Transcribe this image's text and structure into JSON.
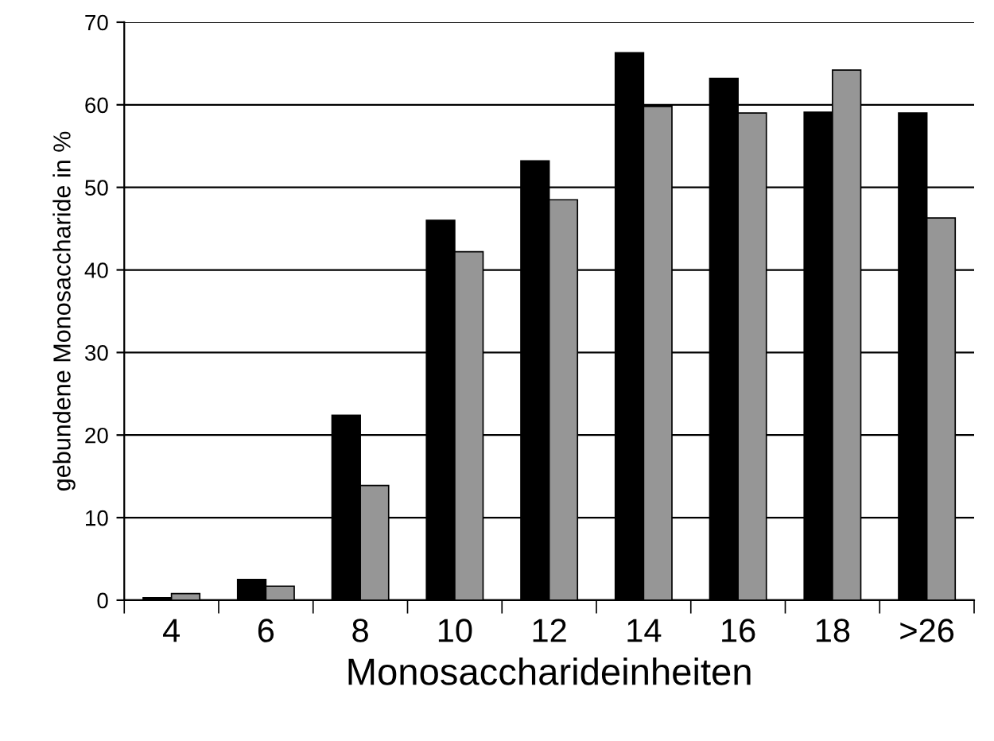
{
  "chart_data": {
    "type": "bar",
    "xlabel": "Monosaccharideinheiten",
    "ylabel": "gebundene Monosaccharide in %",
    "categories": [
      "4",
      "6",
      "8",
      "10",
      "12",
      "14",
      "16",
      "18",
      ">26"
    ],
    "series": [
      {
        "color": "#000000",
        "values": [
          0.3,
          2.5,
          22.4,
          46.0,
          53.2,
          66.3,
          63.2,
          59.1,
          59.0
        ]
      },
      {
        "color": "#969696",
        "values": [
          0.8,
          1.7,
          13.9,
          42.2,
          48.5,
          59.8,
          59.0,
          64.2,
          46.3
        ]
      }
    ],
    "ylim": [
      0,
      70
    ],
    "yticks": [
      0,
      10,
      20,
      30,
      40,
      50,
      60,
      70
    ],
    "grid": "y"
  }
}
